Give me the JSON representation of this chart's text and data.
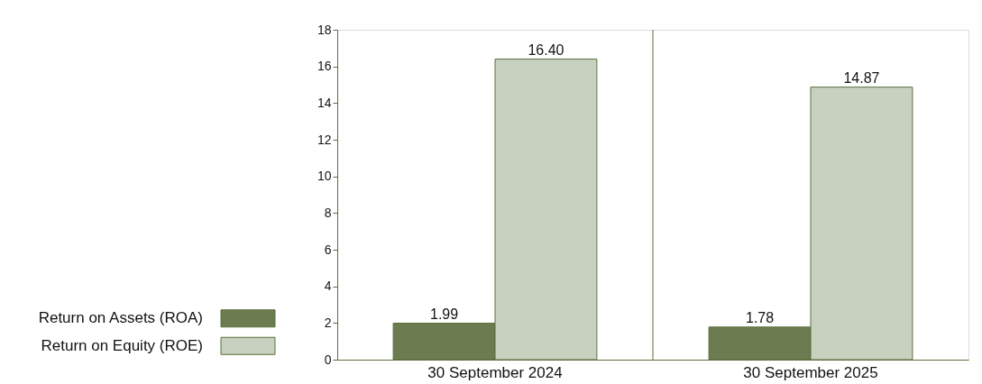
{
  "chart_data": {
    "type": "bar",
    "categories": [
      "30 September 2024",
      "30 September 2025"
    ],
    "series": [
      {
        "name": "Return on Assets (ROA)",
        "color": "#6b7d50",
        "values": [
          1.99,
          1.78
        ],
        "value_labels": [
          "1.99",
          "1.78"
        ]
      },
      {
        "name": "Return on Equity (ROE)",
        "color": "#c8d0bf",
        "values": [
          16.4,
          14.87
        ],
        "value_labels": [
          "16.40",
          "14.87"
        ]
      }
    ],
    "ylim": [
      0,
      18
    ],
    "yticks": [
      0,
      2,
      4,
      6,
      8,
      10,
      12,
      14,
      16,
      18
    ],
    "ref_lines": [
      {
        "axis": "x",
        "value": "30 September 2025",
        "color": "#5b6e3c"
      }
    ],
    "legend": "left"
  }
}
